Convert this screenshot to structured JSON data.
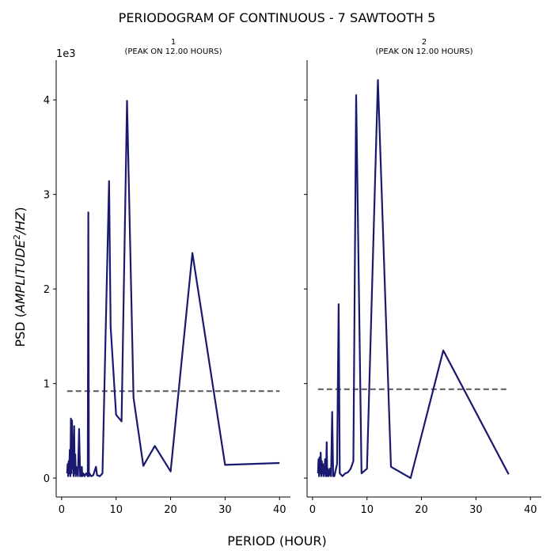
{
  "figure": {
    "title": "PERIODOGRAM OF CONTINUOUS - 7 SAWTOOTH 5",
    "xlabel": "PERIOD (HOUR)",
    "ylabel_prefix": "PSD (",
    "ylabel_math": "AMPLITUDE",
    "ylabel_sup": "2",
    "ylabel_math2": "/HZ",
    "ylabel_suffix": ")",
    "offset_text": "1e3"
  },
  "colors": {
    "line": "#191970",
    "threshold": "#606060"
  },
  "chart_data": [
    {
      "type": "line",
      "title_line1": "1",
      "title_line2": "(PEAK ON 12.00 HOURS)",
      "xlim": [
        -1,
        42
      ],
      "ylim": [
        -0.2,
        4.42
      ],
      "xticks": [
        0,
        10,
        20,
        30,
        40
      ],
      "yticks": [
        0,
        1,
        2,
        3,
        4
      ],
      "y_scale_note": "values in units of 1e3",
      "threshold": {
        "x": [
          1,
          40
        ],
        "y": 0.92
      },
      "series": [
        {
          "x": [
            1.0,
            1.1,
            1.2,
            1.3,
            1.4,
            1.5,
            1.6,
            1.7,
            1.8,
            1.9,
            2.0,
            2.1,
            2.2,
            2.3,
            2.4,
            2.5,
            2.6,
            2.7,
            2.8,
            2.9,
            3.0,
            3.2,
            3.4,
            3.5,
            3.6,
            3.7,
            3.8,
            4.0,
            4.2,
            4.5,
            4.8,
            4.9,
            5.0,
            5.1,
            5.4,
            5.8,
            6.3,
            6.5,
            7.0,
            7.5,
            8.7,
            9.0,
            10.0,
            11.0,
            12.0,
            13.2,
            15.0,
            17.1,
            20.0,
            24.0,
            30.0,
            40.0
          ],
          "y": [
            0.05,
            0.15,
            0.02,
            0.18,
            0.05,
            0.3,
            0.02,
            0.63,
            0.05,
            0.61,
            0.1,
            0.45,
            0.02,
            0.55,
            0.05,
            0.25,
            0.02,
            0.12,
            0.05,
            0.08,
            0.02,
            0.52,
            0.02,
            0.1,
            0.02,
            0.12,
            0.02,
            0.05,
            0.02,
            0.05,
            0.02,
            2.81,
            0.02,
            0.05,
            0.02,
            0.03,
            0.12,
            0.03,
            0.02,
            0.05,
            3.14,
            1.6,
            0.67,
            0.6,
            3.99,
            0.85,
            0.13,
            0.34,
            0.07,
            2.38,
            0.14,
            0.16
          ]
        }
      ]
    },
    {
      "type": "line",
      "title_line1": "2",
      "title_line2": "(PEAK ON 12.00 HOURS)",
      "xlim": [
        -1,
        42
      ],
      "ylim": [
        -0.2,
        4.42
      ],
      "xticks": [
        0,
        10,
        20,
        30,
        40
      ],
      "yticks": [
        0,
        1,
        2,
        3,
        4
      ],
      "y_scale_note": "values in units of 1e3",
      "threshold": {
        "x": [
          1,
          36
        ],
        "y": 0.94
      },
      "series": [
        {
          "x": [
            1.0,
            1.1,
            1.2,
            1.3,
            1.4,
            1.5,
            1.6,
            1.7,
            1.8,
            1.9,
            2.0,
            2.1,
            2.2,
            2.3,
            2.4,
            2.5,
            2.6,
            2.7,
            2.8,
            3.0,
            3.2,
            3.4,
            3.6,
            3.8,
            4.0,
            4.5,
            4.8,
            5.0,
            5.5,
            6.0,
            6.5,
            7.0,
            7.5,
            8.0,
            9.0,
            10.0,
            12.0,
            14.4,
            18.0,
            24.0,
            36.0
          ],
          "y": [
            0.05,
            0.2,
            0.02,
            0.22,
            0.05,
            0.27,
            0.02,
            0.18,
            0.05,
            0.15,
            0.02,
            0.12,
            0.05,
            0.2,
            0.02,
            0.1,
            0.38,
            0.02,
            0.1,
            0.02,
            0.1,
            0.02,
            0.7,
            0.02,
            0.02,
            0.15,
            1.84,
            0.05,
            0.02,
            0.05,
            0.06,
            0.1,
            0.18,
            4.05,
            0.05,
            0.1,
            4.21,
            0.12,
            0.0,
            1.35,
            0.04
          ]
        }
      ]
    }
  ]
}
